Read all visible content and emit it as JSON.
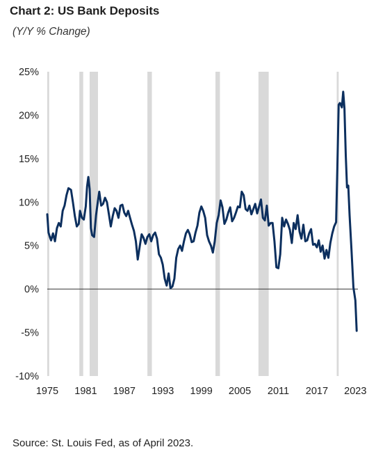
{
  "title": "Chart 2: US Bank Deposits",
  "subtitle": "(Y/Y % Change)",
  "source": "Source: St. Louis Fed, as of April 2023.",
  "colors": {
    "line": "#0c2f5e",
    "recession": "#d9d9d9",
    "zero_line": "#333333"
  },
  "chart_data": {
    "type": "line",
    "title": "Chart 2: US Bank Deposits",
    "subtitle": "(Y/Y % Change)",
    "xlabel": "",
    "ylabel": "",
    "xlim": [
      1975,
      2023.4
    ],
    "ylim": [
      -10,
      25
    ],
    "x_ticks": [
      1975,
      1981,
      1987,
      1993,
      1999,
      2005,
      2011,
      2017,
      2023
    ],
    "x_tick_labels": [
      "1975",
      "1981",
      "1987",
      "1993",
      "1999",
      "2005",
      "2011",
      "2017",
      "2023"
    ],
    "y_ticks": [
      -10,
      -5,
      0,
      5,
      10,
      15,
      20,
      25
    ],
    "y_tick_labels": [
      "-10%",
      "-5%",
      "0%",
      "5%",
      "10%",
      "15%",
      "20%",
      "25%"
    ],
    "grid": false,
    "recessions": [
      [
        1975.0,
        1975.3
      ],
      [
        1980.0,
        1980.6
      ],
      [
        1981.6,
        1982.9
      ],
      [
        1990.6,
        1991.3
      ],
      [
        2001.2,
        2001.9
      ],
      [
        2007.9,
        2009.5
      ],
      [
        2020.1,
        2020.4
      ]
    ],
    "series": [
      {
        "x": [
          1975.0,
          1975.2,
          1975.4,
          1975.6,
          1975.9,
          1976.2,
          1976.5,
          1976.8,
          1977.1,
          1977.4,
          1977.7,
          1978.0,
          1978.3,
          1978.7,
          1979.0,
          1979.3,
          1979.6,
          1979.9,
          1980.1,
          1980.4,
          1980.7,
          1981.0,
          1981.2,
          1981.4,
          1981.6,
          1981.8,
          1982.0,
          1982.3,
          1982.6,
          1982.9,
          1983.1,
          1983.4,
          1983.7,
          1984.0,
          1984.3,
          1984.6,
          1984.9,
          1985.2,
          1985.5,
          1985.8,
          1986.1,
          1986.4,
          1986.7,
          1987.0,
          1987.3,
          1987.6,
          1987.9,
          1988.2,
          1988.5,
          1988.8,
          1989.1,
          1989.4,
          1989.7,
          1990.0,
          1990.3,
          1990.6,
          1990.9,
          1991.2,
          1991.5,
          1991.8,
          1992.1,
          1992.4,
          1992.7,
          1993.0,
          1993.3,
          1993.6,
          1993.9,
          1994.2,
          1994.5,
          1994.8,
          1995.1,
          1995.4,
          1995.7,
          1996.0,
          1996.3,
          1996.6,
          1996.9,
          1997.2,
          1997.5,
          1997.8,
          1998.1,
          1998.4,
          1998.7,
          1999.0,
          1999.3,
          1999.6,
          1999.9,
          2000.2,
          2000.5,
          2000.8,
          2001.1,
          2001.4,
          2001.7,
          2002.0,
          2002.3,
          2002.6,
          2002.9,
          2003.2,
          2003.5,
          2003.8,
          2004.1,
          2004.4,
          2004.7,
          2005.0,
          2005.3,
          2005.6,
          2005.9,
          2006.2,
          2006.5,
          2006.8,
          2007.1,
          2007.4,
          2007.7,
          2008.0,
          2008.3,
          2008.6,
          2008.9,
          2009.2,
          2009.5,
          2009.8,
          2010.1,
          2010.4,
          2010.7,
          2011.0,
          2011.3,
          2011.6,
          2011.9,
          2012.2,
          2012.5,
          2012.8,
          2013.1,
          2013.4,
          2013.7,
          2014.0,
          2014.3,
          2014.6,
          2014.9,
          2015.2,
          2015.5,
          2015.8,
          2016.1,
          2016.4,
          2016.7,
          2017.0,
          2017.3,
          2017.6,
          2017.9,
          2018.2,
          2018.5,
          2018.8,
          2019.1,
          2019.4,
          2019.7,
          2020.0,
          2020.2,
          2020.4,
          2020.6,
          2020.9,
          2021.1,
          2021.3,
          2021.5,
          2021.7,
          2021.9,
          2022.1,
          2022.4,
          2022.7,
          2023.0,
          2023.2
        ],
        "y": [
          8.6,
          6.5,
          6.0,
          5.6,
          6.4,
          5.5,
          7.0,
          7.6,
          7.2,
          9.0,
          9.6,
          10.8,
          11.6,
          11.4,
          10.0,
          8.4,
          7.2,
          7.5,
          9.0,
          8.2,
          8.0,
          9.5,
          11.8,
          12.9,
          11.5,
          7.0,
          6.2,
          6.0,
          8.5,
          10.2,
          11.2,
          9.6,
          9.8,
          10.5,
          10.0,
          8.6,
          7.2,
          8.4,
          9.3,
          9.0,
          8.2,
          9.6,
          9.7,
          8.8,
          8.4,
          9.0,
          8.2,
          7.4,
          6.7,
          5.5,
          3.4,
          4.9,
          6.3,
          5.9,
          5.2,
          6.0,
          6.3,
          5.5,
          6.2,
          6.5,
          5.8,
          4.0,
          3.6,
          2.8,
          1.2,
          0.4,
          1.8,
          0.1,
          0.3,
          1.2,
          3.6,
          4.6,
          5.0,
          4.4,
          5.5,
          6.4,
          6.8,
          6.3,
          5.4,
          5.5,
          6.5,
          7.3,
          8.8,
          9.5,
          9.0,
          8.2,
          6.2,
          5.5,
          5.0,
          4.2,
          5.5,
          7.6,
          8.5,
          10.2,
          9.4,
          7.5,
          8.0,
          8.8,
          9.4,
          7.8,
          8.2,
          8.8,
          9.5,
          9.4,
          11.2,
          10.8,
          9.2,
          9.0,
          9.6,
          8.6,
          9.2,
          9.8,
          8.7,
          9.5,
          10.3,
          8.2,
          7.9,
          9.6,
          7.3,
          7.6,
          7.6,
          5.5,
          2.5,
          2.4,
          4.0,
          8.2,
          7.2,
          8.0,
          7.5,
          6.8,
          5.3,
          7.6,
          6.9,
          8.5,
          6.6,
          5.8,
          7.4,
          5.5,
          5.6,
          6.4,
          6.9,
          5.1,
          5.2,
          4.8,
          5.6,
          4.3,
          5.0,
          3.5,
          4.5,
          3.6,
          5.3,
          6.4,
          7.2,
          7.7,
          14.0,
          21.2,
          21.4,
          20.9,
          22.7,
          20.8,
          15.4,
          11.7,
          11.9,
          8.5,
          4.4,
          0.2,
          -1.3,
          -4.8
        ]
      }
    ]
  }
}
